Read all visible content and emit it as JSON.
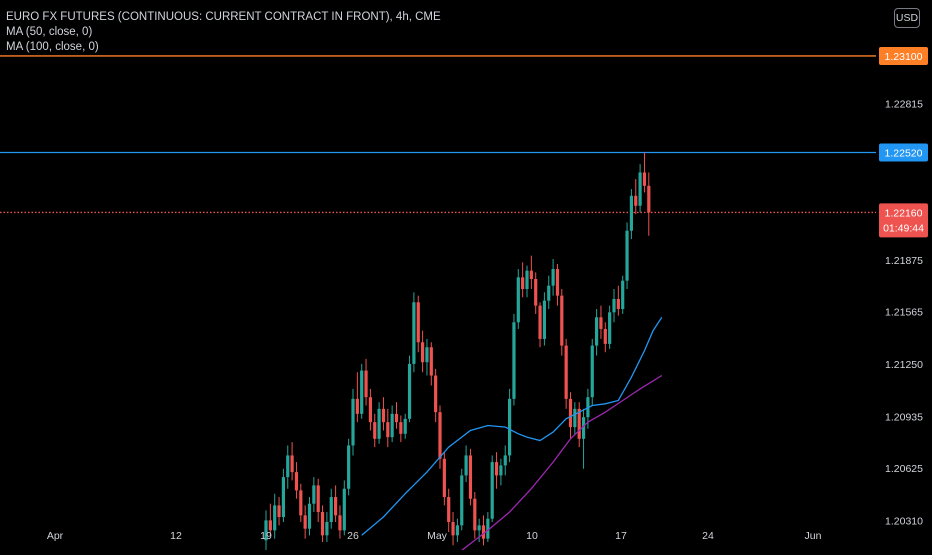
{
  "chart": {
    "title": "EURO FX FUTURES (CONTINUOUS: CURRENT CONTRACT IN FRONT), 4h, CME",
    "indicators": [
      "MA (50, close, 0)",
      "MA (100, close, 0)"
    ],
    "currency": "USD"
  },
  "colors": {
    "up": "#26a69a",
    "down": "#ef5350",
    "ma50": "#2196f3",
    "ma100": "#9c27b0",
    "orange_line": "#ff7f27",
    "blue_line": "#2196f3",
    "current_price": "#ef5350"
  },
  "chart_data": {
    "type": "candlestick",
    "price_axis": {
      "ticks": [
        "1.22815",
        "1.21875",
        "1.21565",
        "1.21250",
        "1.20935",
        "1.20625",
        "1.20310"
      ],
      "range": [
        1.2018,
        1.2334
      ]
    },
    "time_axis": {
      "ticks": [
        "Apr",
        "12",
        "19",
        "26",
        "May",
        "10",
        "17",
        "24",
        "Jun"
      ]
    },
    "horizontal_lines": [
      {
        "price": 1.231,
        "label": "1.23100",
        "style": "solid",
        "color": "orange"
      },
      {
        "price": 1.2252,
        "label": "1.22520",
        "style": "solid",
        "color": "blue"
      },
      {
        "price": 1.2216,
        "label": "1.22160",
        "style": "dotted",
        "color": "current"
      }
    ],
    "current_price": {
      "value": "1.22160",
      "countdown": "01:49:44"
    },
    "candles": [
      [
        1.2019,
        1.2037,
        1.2013,
        1.2031
      ],
      [
        1.2031,
        1.2041,
        1.2022,
        1.2025
      ],
      [
        1.2025,
        1.2047,
        1.202,
        1.204
      ],
      [
        1.204,
        1.2045,
        1.2028,
        1.2033
      ],
      [
        1.2033,
        1.2062,
        1.203,
        1.2057
      ],
      [
        1.2057,
        1.2076,
        1.205,
        1.207
      ],
      [
        1.207,
        1.2078,
        1.2055,
        1.206
      ],
      [
        1.206,
        1.2066,
        1.2044,
        1.2049
      ],
      [
        1.2049,
        1.2053,
        1.203,
        1.2034
      ],
      [
        1.2034,
        1.204,
        1.202,
        1.2026
      ],
      [
        1.2026,
        1.2045,
        1.2022,
        1.2041
      ],
      [
        1.2041,
        1.2057,
        1.2036,
        1.2052
      ],
      [
        1.2052,
        1.2056,
        1.203,
        1.2036
      ],
      [
        1.2036,
        1.204,
        1.2018,
        1.2022
      ],
      [
        1.2022,
        1.2036,
        1.2018,
        1.203
      ],
      [
        1.203,
        1.205,
        1.2026,
        1.2045
      ],
      [
        1.2045,
        1.2052,
        1.203,
        1.2034
      ],
      [
        1.2034,
        1.204,
        1.202,
        1.2025
      ],
      [
        1.2025,
        1.2055,
        1.2022,
        1.205
      ],
      [
        1.205,
        1.208,
        1.2046,
        1.2076
      ],
      [
        1.2076,
        1.211,
        1.207,
        1.2104
      ],
      [
        1.2104,
        1.212,
        1.209,
        1.2095
      ],
      [
        1.2095,
        1.2125,
        1.2092,
        1.2121
      ],
      [
        1.2121,
        1.2128,
        1.21,
        1.2105
      ],
      [
        1.2105,
        1.211,
        1.2085,
        1.209
      ],
      [
        1.209,
        1.2095,
        1.2075,
        1.208
      ],
      [
        1.208,
        1.2102,
        1.2077,
        1.2098
      ],
      [
        1.2098,
        1.2105,
        1.2085,
        1.209
      ],
      [
        1.209,
        1.2098,
        1.2075,
        1.2081
      ],
      [
        1.2081,
        1.21,
        1.2078,
        1.2095
      ],
      [
        1.2095,
        1.2102,
        1.2086,
        1.209
      ],
      [
        1.209,
        1.2094,
        1.2078,
        1.2083
      ],
      [
        1.2083,
        1.2095,
        1.208,
        1.2092
      ],
      [
        1.2092,
        1.213,
        1.209,
        1.2125
      ],
      [
        1.2125,
        1.2168,
        1.212,
        1.2162
      ],
      [
        1.2162,
        1.2166,
        1.2132,
        1.2138
      ],
      [
        1.2138,
        1.2145,
        1.212,
        1.2126
      ],
      [
        1.2126,
        1.214,
        1.2118,
        1.2135
      ],
      [
        1.2135,
        1.2138,
        1.2112,
        1.2118
      ],
      [
        1.2118,
        1.2122,
        1.209,
        1.2096
      ],
      [
        1.2096,
        1.21,
        1.2062,
        1.2068
      ],
      [
        1.2068,
        1.2072,
        1.204,
        1.2045
      ],
      [
        1.2045,
        1.205,
        1.2024,
        1.203
      ],
      [
        1.203,
        1.2036,
        1.2016,
        1.2022
      ],
      [
        1.2022,
        1.2032,
        1.2018,
        1.2028
      ],
      [
        1.2028,
        1.2062,
        1.2025,
        1.2058
      ],
      [
        1.2058,
        1.2076,
        1.2054,
        1.207
      ],
      [
        1.207,
        1.2074,
        1.204,
        1.2044
      ],
      [
        1.2044,
        1.2048,
        1.202,
        1.2025
      ],
      [
        1.2025,
        1.2032,
        1.2018,
        1.2028
      ],
      [
        1.2028,
        1.2034,
        1.2016,
        1.202
      ],
      [
        1.202,
        1.2036,
        1.2018,
        1.2032
      ],
      [
        1.2032,
        1.207,
        1.203,
        1.2066
      ],
      [
        1.2066,
        1.2072,
        1.205,
        1.2058
      ],
      [
        1.2058,
        1.2068,
        1.2052,
        1.2064
      ],
      [
        1.2064,
        1.2076,
        1.2058,
        1.207
      ],
      [
        1.207,
        1.211,
        1.2066,
        1.2104
      ],
      [
        1.2104,
        1.2155,
        1.21,
        1.215
      ],
      [
        1.215,
        1.2182,
        1.2146,
        1.2177
      ],
      [
        1.2177,
        1.2186,
        1.2165,
        1.217
      ],
      [
        1.217,
        1.2184,
        1.2165,
        1.2181
      ],
      [
        1.2181,
        1.219,
        1.217,
        1.2176
      ],
      [
        1.2176,
        1.218,
        1.2155,
        1.216
      ],
      [
        1.216,
        1.2162,
        1.2135,
        1.214
      ],
      [
        1.214,
        1.2168,
        1.2136,
        1.2163
      ],
      [
        1.2163,
        1.2178,
        1.2158,
        1.2172
      ],
      [
        1.2172,
        1.2188,
        1.2166,
        1.2182
      ],
      [
        1.2182,
        1.2185,
        1.216,
        1.2166
      ],
      [
        1.2166,
        1.217,
        1.213,
        1.2136
      ],
      [
        1.2136,
        1.214,
        1.2098,
        1.2104
      ],
      [
        1.2104,
        1.2108,
        1.208,
        1.2087
      ],
      [
        1.2087,
        1.2102,
        1.2082,
        1.2098
      ],
      [
        1.2098,
        1.2102,
        1.2075,
        1.208
      ],
      [
        1.208,
        1.2098,
        1.2062,
        1.2093
      ],
      [
        1.2093,
        1.211,
        1.2086,
        1.2105
      ],
      [
        1.2105,
        1.214,
        1.21,
        1.2136
      ],
      [
        1.2136,
        1.2158,
        1.213,
        1.2153
      ],
      [
        1.2153,
        1.216,
        1.214,
        1.2146
      ],
      [
        1.2146,
        1.215,
        1.2132,
        1.2137
      ],
      [
        1.2137,
        1.216,
        1.2134,
        1.2156
      ],
      [
        1.2156,
        1.217,
        1.215,
        1.2164
      ],
      [
        1.2164,
        1.2172,
        1.2154,
        1.2158
      ],
      [
        1.2158,
        1.2178,
        1.2155,
        1.2175
      ],
      [
        1.2175,
        1.221,
        1.217,
        1.2205
      ],
      [
        1.2205,
        1.223,
        1.22,
        1.2226
      ],
      [
        1.2226,
        1.2236,
        1.2215,
        1.222
      ],
      [
        1.222,
        1.2245,
        1.2216,
        1.224
      ],
      [
        1.224,
        1.2252,
        1.2228,
        1.2232
      ],
      [
        1.2232,
        1.224,
        1.2202,
        1.2216
      ]
    ],
    "ma50": [
      [
        22,
        1.2022
      ],
      [
        27,
        1.2033
      ],
      [
        32,
        1.2047
      ],
      [
        37,
        1.206
      ],
      [
        42,
        1.2075
      ],
      [
        47,
        1.2085
      ],
      [
        51,
        1.2088
      ],
      [
        55,
        1.2087
      ],
      [
        58,
        1.2083
      ],
      [
        60,
        1.2081
      ],
      [
        63,
        1.2079
      ],
      [
        66,
        1.2084
      ],
      [
        69,
        1.2092
      ],
      [
        72,
        1.2096
      ],
      [
        75,
        1.21
      ],
      [
        78,
        1.2101
      ],
      [
        81,
        1.2103
      ],
      [
        84,
        1.2117
      ],
      [
        87,
        1.2133
      ],
      [
        89,
        1.2145
      ],
      [
        91,
        1.2153
      ]
    ],
    "ma100": [
      [
        38,
        1.2002
      ],
      [
        45,
        1.2013
      ],
      [
        51,
        1.2025
      ],
      [
        56,
        1.2036
      ],
      [
        61,
        1.205
      ],
      [
        66,
        1.2066
      ],
      [
        70,
        1.208
      ],
      [
        74,
        1.209
      ],
      [
        78,
        1.2096
      ],
      [
        82,
        1.2103
      ],
      [
        86,
        1.211
      ],
      [
        91,
        1.2118
      ]
    ]
  }
}
